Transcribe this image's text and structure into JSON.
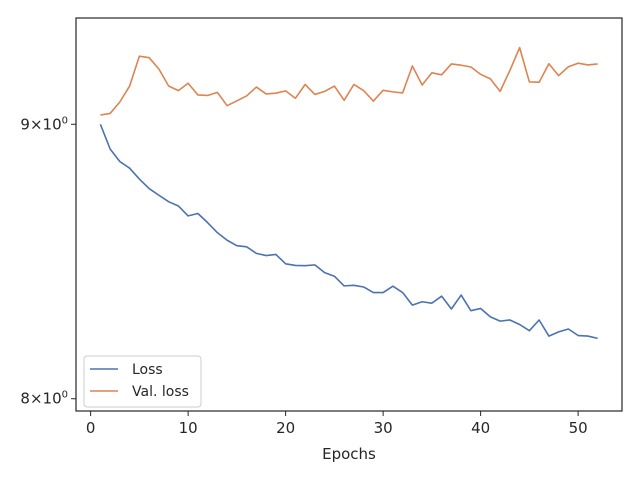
{
  "chart_data": {
    "type": "line",
    "title": "",
    "xlabel": "Epochs",
    "ylabel": "",
    "y_scale": "log",
    "xlim": [
      -1.5,
      54.5
    ],
    "ylim": [
      7.958,
      9.42
    ],
    "grid": false,
    "legend_position": "lower-left",
    "x_ticks": [
      0,
      10,
      20,
      30,
      40,
      50
    ],
    "y_ticks": [
      {
        "value": 8,
        "base": "8",
        "exp": "0"
      },
      {
        "value": 9,
        "base": "9",
        "exp": "0"
      }
    ],
    "x": [
      1,
      2,
      3,
      4,
      5,
      6,
      7,
      8,
      9,
      10,
      11,
      12,
      13,
      14,
      15,
      16,
      17,
      18,
      19,
      20,
      21,
      22,
      23,
      24,
      25,
      26,
      27,
      28,
      29,
      30,
      31,
      32,
      33,
      34,
      35,
      36,
      37,
      38,
      39,
      40,
      41,
      42,
      43,
      44,
      45,
      46,
      47,
      48,
      49,
      50,
      51,
      52
    ],
    "series": [
      {
        "name": "Loss",
        "color": "#4c72b0",
        "values": [
          9.0,
          8.905,
          8.857,
          8.832,
          8.791,
          8.755,
          8.73,
          8.706,
          8.69,
          8.653,
          8.662,
          8.628,
          8.591,
          8.563,
          8.543,
          8.539,
          8.515,
          8.507,
          8.511,
          8.477,
          8.471,
          8.47,
          8.473,
          8.445,
          8.432,
          8.397,
          8.399,
          8.393,
          8.373,
          8.373,
          8.396,
          8.373,
          8.328,
          8.34,
          8.335,
          8.36,
          8.314,
          8.364,
          8.308,
          8.316,
          8.286,
          8.271,
          8.275,
          8.259,
          8.237,
          8.275,
          8.218,
          8.233,
          8.243,
          8.22,
          8.218,
          8.21
        ]
      },
      {
        "name": "Val. loss",
        "color": "#dd8452",
        "values": [
          9.036,
          9.042,
          9.087,
          9.149,
          9.267,
          9.261,
          9.216,
          9.149,
          9.131,
          9.16,
          9.114,
          9.112,
          9.124,
          9.072,
          9.091,
          9.11,
          9.145,
          9.118,
          9.121,
          9.13,
          9.101,
          9.155,
          9.116,
          9.128,
          9.149,
          9.093,
          9.155,
          9.131,
          9.09,
          9.132,
          9.126,
          9.122,
          9.228,
          9.153,
          9.201,
          9.193,
          9.236,
          9.231,
          9.224,
          9.195,
          9.177,
          9.128,
          9.21,
          9.301,
          9.165,
          9.164,
          9.237,
          9.19,
          9.225,
          9.239,
          9.232,
          9.236
        ]
      }
    ]
  }
}
